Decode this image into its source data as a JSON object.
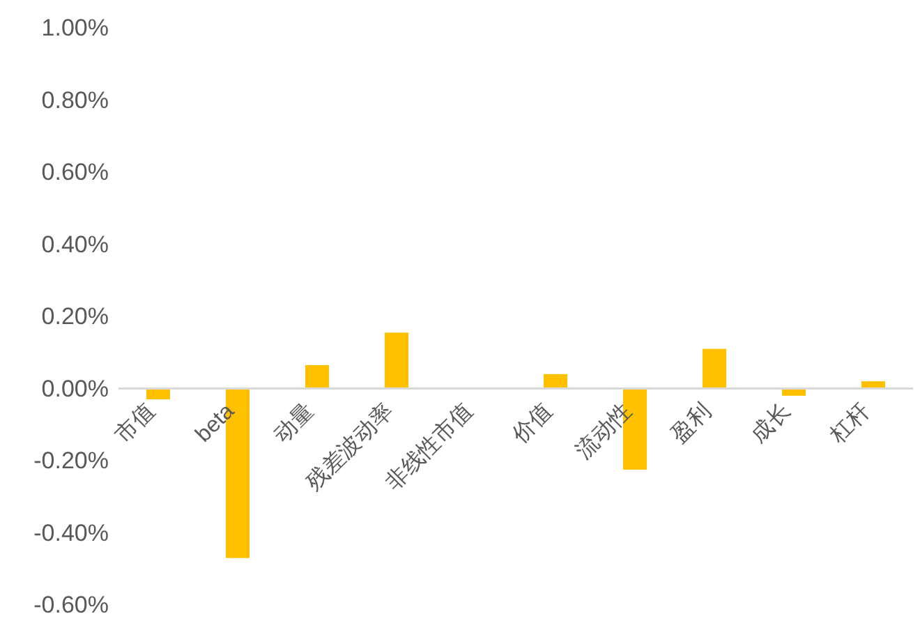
{
  "chart_data": {
    "type": "bar",
    "categories": [
      "市值",
      "beta",
      "动量",
      "残差波动率",
      "非线性市值",
      "价值",
      "流动性",
      "盈利",
      "成长",
      "杠杆"
    ],
    "values": [
      -0.03,
      -0.47,
      0.065,
      0.155,
      0,
      0.04,
      -0.225,
      0.11,
      -0.02,
      0.02
    ],
    "color": "#ffc000",
    "ylim": [
      -0.6,
      1.0
    ],
    "yticks": [
      {
        "value": -0.6,
        "label": "-0.60%"
      },
      {
        "value": -0.4,
        "label": "-0.40%"
      },
      {
        "value": -0.2,
        "label": "-0.20%"
      },
      {
        "value": 0,
        "label": "0.00%"
      },
      {
        "value": 0.2,
        "label": "0.20%"
      },
      {
        "value": 0.4,
        "label": "0.40%"
      },
      {
        "value": 0.6,
        "label": "0.60%"
      },
      {
        "value": 0.8,
        "label": "0.80%"
      },
      {
        "value": 1.0,
        "label": "1.00%"
      }
    ]
  }
}
